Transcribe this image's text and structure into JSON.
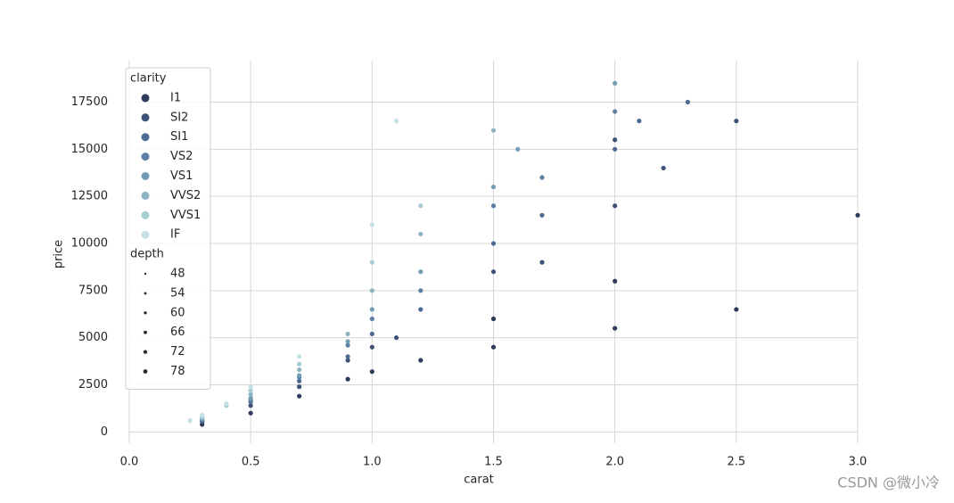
{
  "chart_data": {
    "type": "scatter",
    "x_label": "carat",
    "y_label": "price",
    "xlim": [
      0,
      3
    ],
    "ylim": [
      -600,
      19700
    ],
    "xticks": [
      {
        "value": 0,
        "label": "0.0"
      },
      0.5,
      {
        "value": 1,
        "label": "1.0"
      },
      1.5,
      {
        "value": 2,
        "label": "2.0"
      },
      2.5,
      {
        "value": 3,
        "label": "3.0"
      }
    ],
    "yticks": [
      0,
      2500,
      5000,
      7500,
      10000,
      12500,
      15000,
      17500
    ],
    "grid": true,
    "legend": "upper left",
    "legend_title": "clarity",
    "series": [
      {
        "name": "I1",
        "color": "#2d3a5c",
        "x": [
          0.3,
          0.5,
          0.7,
          0.9,
          1.0,
          1.2,
          1.5,
          1.5,
          2.0,
          2.0,
          2.5,
          3.0
        ],
        "values": [
          400,
          1000,
          1900,
          2800,
          3200,
          3800,
          4500,
          6000,
          5500,
          8000,
          6500,
          11500
        ]
      },
      {
        "name": "SI2",
        "color": "#3e5277",
        "x": [
          0.3,
          0.5,
          0.7,
          0.9,
          1.0,
          1.1,
          1.5,
          1.7,
          2.0,
          2.0,
          2.2,
          2.5
        ],
        "values": [
          550,
          1400,
          2400,
          3800,
          4500,
          5000,
          8500,
          9000,
          12000,
          15500,
          14000,
          16500
        ]
      },
      {
        "name": "SI1",
        "color": "#4d6a92",
        "x": [
          0.3,
          0.5,
          0.7,
          0.9,
          1.0,
          1.2,
          1.5,
          1.7,
          2.0,
          2.1,
          2.3
        ],
        "values": [
          600,
          1600,
          2700,
          4000,
          5200,
          6500,
          10000,
          11500,
          15000,
          16500,
          17500
        ]
      },
      {
        "name": "VS2",
        "color": "#5c80a3",
        "x": [
          0.3,
          0.5,
          0.7,
          0.9,
          1.0,
          1.2,
          1.5,
          1.7,
          2.0
        ],
        "values": [
          650,
          1700,
          2900,
          4600,
          6000,
          7500,
          12000,
          13500,
          17000
        ]
      },
      {
        "name": "VS1",
        "color": "#739db5",
        "x": [
          0.3,
          0.5,
          0.7,
          0.9,
          1.0,
          1.2,
          1.5,
          1.6,
          2.0
        ],
        "values": [
          700,
          1800,
          3000,
          4800,
          6500,
          8500,
          13000,
          15000,
          18500
        ]
      },
      {
        "name": "VVS2",
        "color": "#8bb5c3",
        "x": [
          0.3,
          0.5,
          0.7,
          0.9,
          1.0,
          1.2,
          1.5
        ],
        "values": [
          750,
          2000,
          3300,
          5200,
          7500,
          10500,
          16000
        ]
      },
      {
        "name": "VVS1",
        "color": "#a7ccd3",
        "x": [
          0.3,
          0.4,
          0.5,
          0.7,
          1.0,
          1.2
        ],
        "values": [
          800,
          1400,
          2200,
          3600,
          9000,
          12000
        ]
      },
      {
        "name": "IF",
        "color": "#c5e0e4",
        "x": [
          0.25,
          0.3,
          0.4,
          0.5,
          0.7,
          1.0,
          1.1
        ],
        "values": [
          600,
          900,
          1500,
          2400,
          4000,
          11000,
          16500
        ]
      }
    ],
    "size_legend": {
      "title": "depth",
      "values": [
        48,
        54,
        60,
        66,
        72,
        78
      ]
    }
  },
  "watermark": "CSDN @微小冷"
}
